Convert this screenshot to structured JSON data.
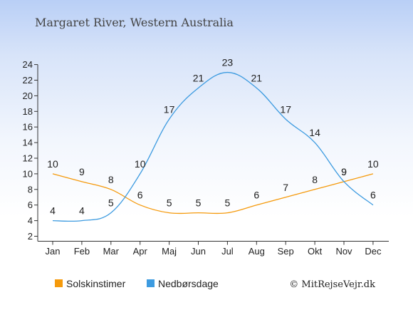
{
  "chart_data": {
    "type": "line",
    "title": "Margaret River, Western Australia",
    "categories": [
      "Jan",
      "Feb",
      "Mar",
      "Apr",
      "Maj",
      "Jun",
      "Jul",
      "Aug",
      "Sep",
      "Okt",
      "Nov",
      "Dec"
    ],
    "y_ticks": [
      "2",
      "4",
      "6",
      "8",
      "10",
      "12",
      "14",
      "16",
      "18",
      "20",
      "22",
      "24"
    ],
    "ylim": [
      2,
      24
    ],
    "grid": false,
    "legend_position": "bottom-left",
    "series": [
      {
        "name": "Solskinstimer",
        "color": "#f59a0c",
        "values": [
          10,
          9,
          8,
          6,
          5,
          5,
          5,
          6,
          7,
          8,
          9,
          10
        ]
      },
      {
        "name": "Nedbørsdage",
        "color": "#3d9be0",
        "values": [
          4,
          4,
          5,
          10,
          17,
          21,
          23,
          21,
          17,
          14,
          9,
          6
        ]
      }
    ],
    "credit": "© MitRejseVejr.dk"
  }
}
